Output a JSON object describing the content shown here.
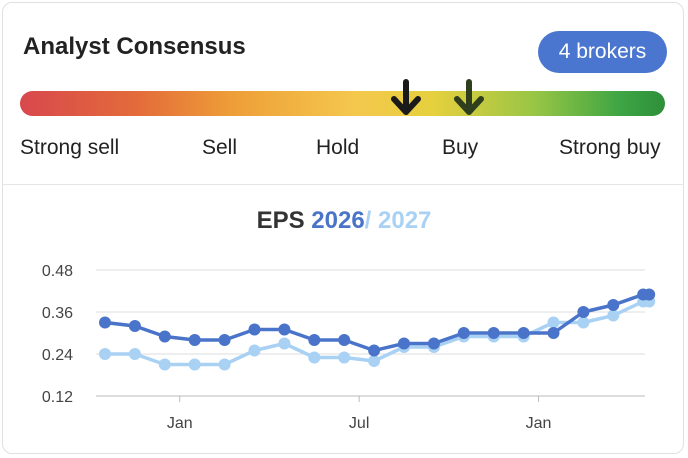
{
  "header": {
    "title": "Analyst Consensus",
    "badge": "4 brokers"
  },
  "consensus": {
    "scale_labels": [
      "Strong sell",
      "Sell",
      "Hold",
      "Buy",
      "Strong buy"
    ],
    "markers": [
      {
        "name": "current",
        "level": 0.6,
        "color": "#1a1a1a",
        "icon": "arrow-down-icon"
      },
      {
        "name": "previous",
        "level": 0.7,
        "color": "#2f3e1c",
        "icon": "arrow-down-icon"
      }
    ]
  },
  "chart_title": {
    "label": "EPS",
    "year1": "2026",
    "separator": "/",
    "year2": "2027"
  },
  "chart_data": {
    "type": "line",
    "title": "EPS 2026 / 2027",
    "xlabel": "",
    "ylabel": "",
    "ylim": [
      0.12,
      0.48
    ],
    "yticks": [
      "0.48",
      "0.36",
      "0.24",
      "0.12"
    ],
    "ytick_values": [
      0.48,
      0.36,
      0.24,
      0.12
    ],
    "xticks": [
      {
        "label": "Jan",
        "index": 2.5
      },
      {
        "label": "Jul",
        "index": 8.5
      },
      {
        "label": "Jan",
        "index": 14.5
      }
    ],
    "grid": true,
    "series": [
      {
        "name": "2026",
        "color": "#4a74c9",
        "values": [
          0.33,
          0.32,
          0.29,
          0.28,
          0.28,
          0.31,
          0.31,
          0.28,
          0.28,
          0.25,
          0.27,
          0.27,
          0.3,
          0.3,
          0.3,
          0.3,
          0.36,
          0.38,
          0.41,
          0.41
        ]
      },
      {
        "name": "2027",
        "color": "#a9d1f4",
        "values": [
          0.24,
          0.24,
          0.21,
          0.21,
          0.21,
          0.25,
          0.27,
          0.23,
          0.23,
          0.22,
          0.26,
          0.26,
          0.29,
          0.29,
          0.29,
          0.33,
          0.33,
          0.35,
          0.39,
          0.39
        ]
      }
    ],
    "point_positions": [
      0,
      1,
      2,
      3,
      4,
      5,
      6,
      7,
      8,
      9,
      10,
      11,
      12,
      13,
      14,
      15,
      16,
      17,
      18,
      18.2
    ]
  }
}
